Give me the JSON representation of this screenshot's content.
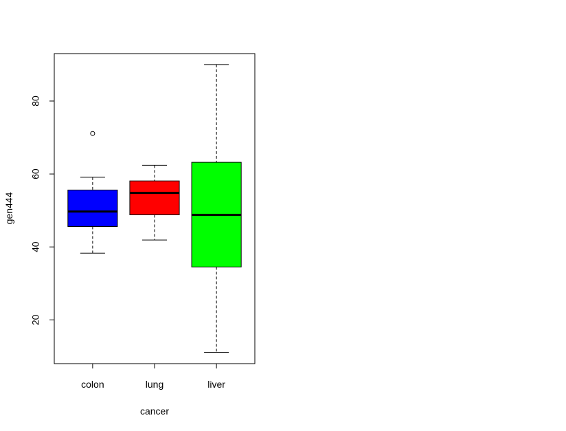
{
  "chart_data": {
    "type": "boxplot",
    "title": "",
    "xlabel": "cancer",
    "ylabel": "gen444",
    "ylim": [
      8,
      93
    ],
    "y_ticks": [
      20,
      40,
      60,
      80
    ],
    "grid": false,
    "legend": false,
    "categories": [
      "colon",
      "lung",
      "liver"
    ],
    "boxes": [
      {
        "category": "colon",
        "color": "#0000ff",
        "whisker_low": 38.3,
        "q1": 45.6,
        "median": 49.7,
        "q3": 55.6,
        "whisker_high": 59.1,
        "outliers": [
          71.1
        ]
      },
      {
        "category": "lung",
        "color": "#ff0000",
        "whisker_low": 41.9,
        "q1": 48.8,
        "median": 54.8,
        "q3": 58.1,
        "whisker_high": 62.4,
        "outliers": []
      },
      {
        "category": "liver",
        "color": "#00ff00",
        "whisker_low": 11.1,
        "q1": 34.5,
        "median": 48.8,
        "q3": 63.2,
        "whisker_high": 90.0,
        "outliers": []
      }
    ]
  }
}
